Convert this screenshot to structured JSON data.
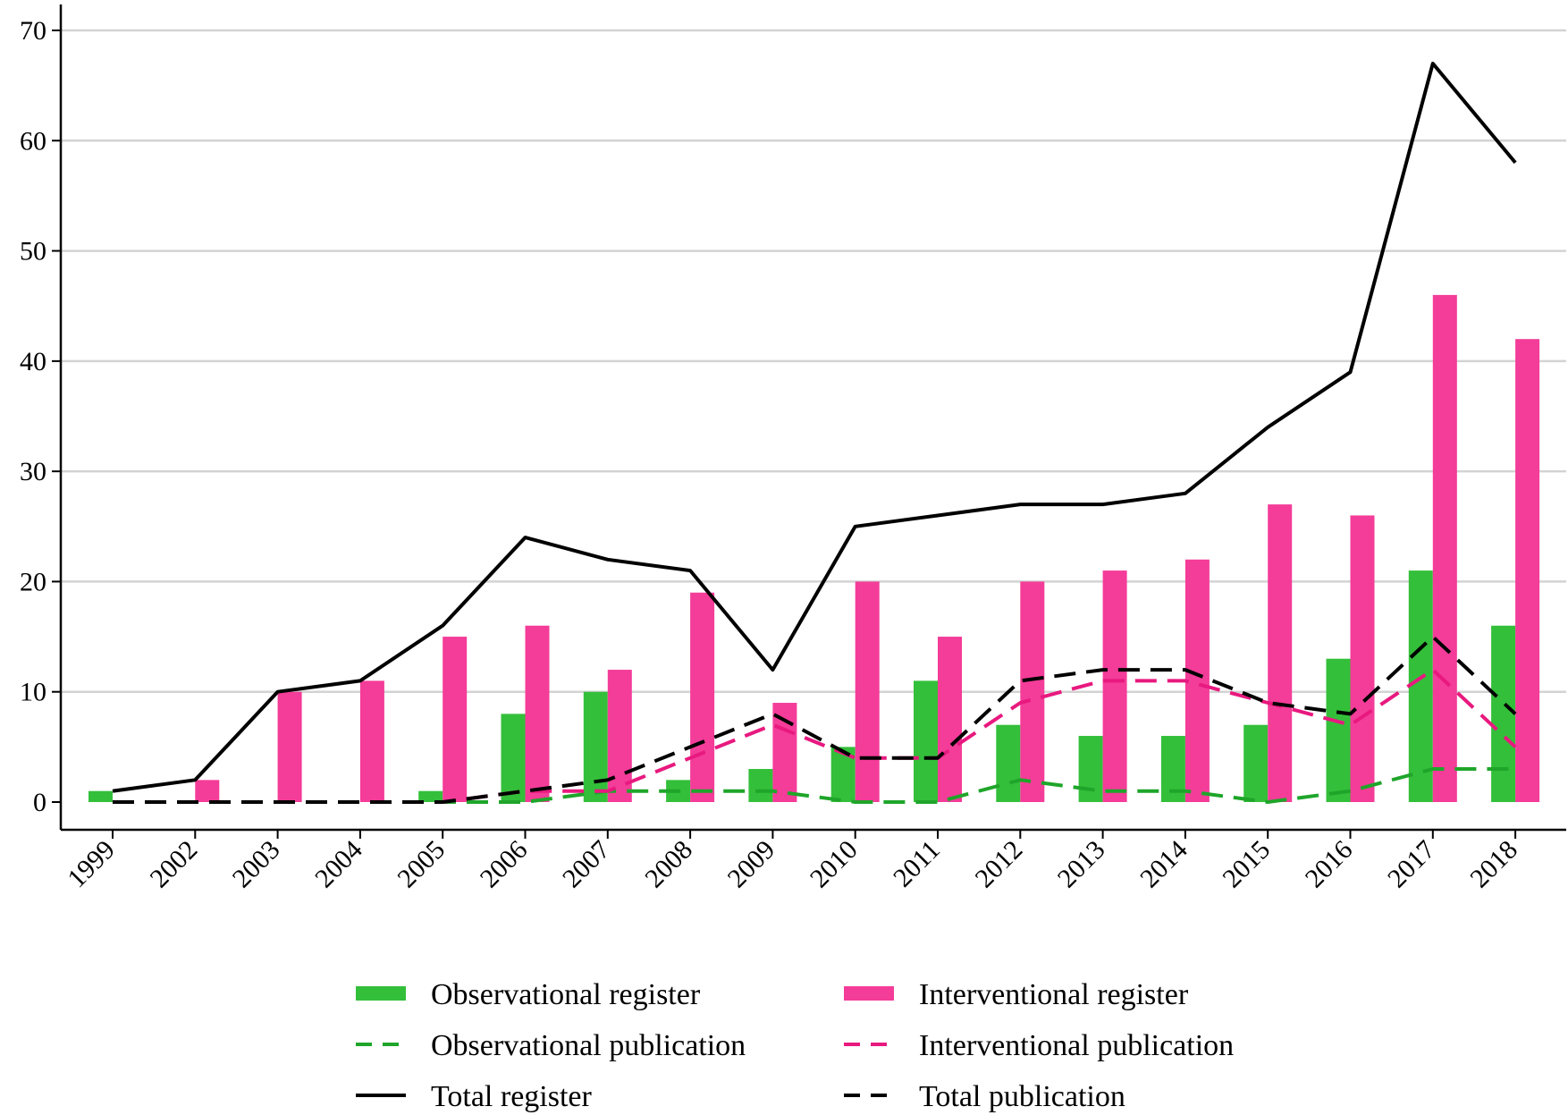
{
  "chart_data": {
    "type": "bar",
    "title": "",
    "xlabel": "",
    "ylabel": "",
    "ylim": [
      0,
      70
    ],
    "yticks": [
      0,
      10,
      20,
      30,
      40,
      50,
      60,
      70
    ],
    "grid": true,
    "legend_position": "bottom",
    "categories": [
      "1999",
      "2002",
      "2003",
      "2004",
      "2005",
      "2006",
      "2007",
      "2008",
      "2009",
      "2010",
      "2011",
      "2012",
      "2013",
      "2014",
      "2015",
      "2016",
      "2017",
      "2018"
    ],
    "bar_series": [
      {
        "name": "Observational register",
        "color": "#33bf3a",
        "values": [
          1,
          0,
          0,
          0,
          1,
          8,
          10,
          2,
          3,
          5,
          11,
          7,
          6,
          6,
          7,
          13,
          21,
          16
        ]
      },
      {
        "name": "Interventional register",
        "color": "#f43c99",
        "values": [
          0,
          2,
          10,
          11,
          15,
          16,
          12,
          19,
          9,
          20,
          15,
          20,
          21,
          22,
          27,
          26,
          46,
          42
        ]
      }
    ],
    "line_series": [
      {
        "name": "Observational publication",
        "color": "#1fa52a",
        "dash": "dashed",
        "values": [
          0,
          0,
          0,
          0,
          0,
          0,
          1,
          1,
          1,
          0,
          0,
          2,
          1,
          1,
          0,
          1,
          3,
          3
        ]
      },
      {
        "name": "Interventional publication",
        "color": "#e8197f",
        "dash": "dashed",
        "values": [
          0,
          0,
          0,
          0,
          0,
          1,
          1,
          4,
          7,
          4,
          4,
          9,
          11,
          11,
          9,
          7,
          12,
          5
        ]
      },
      {
        "name": "Total register",
        "color": "#000000",
        "dash": "solid",
        "values": [
          1,
          2,
          10,
          11,
          16,
          24,
          22,
          21,
          12,
          25,
          26,
          27,
          27,
          28,
          34,
          39,
          67,
          58
        ]
      },
      {
        "name": "Total publication",
        "color": "#000000",
        "dash": "dashed",
        "values": [
          0,
          0,
          0,
          0,
          0,
          1,
          2,
          5,
          8,
          4,
          4,
          11,
          12,
          12,
          9,
          8,
          15,
          8
        ]
      }
    ],
    "legend": [
      {
        "label": "Observational register",
        "kind": "bar",
        "color": "#33bf3a"
      },
      {
        "label": "Interventional register",
        "kind": "bar",
        "color": "#f43c99"
      },
      {
        "label": "Observational publication",
        "kind": "dashed",
        "color": "#1fa52a"
      },
      {
        "label": "Interventional publication",
        "kind": "dashed",
        "color": "#e8197f"
      },
      {
        "label": "Total register",
        "kind": "solid",
        "color": "#000000"
      },
      {
        "label": "Total publication",
        "kind": "dashed",
        "color": "#000000"
      }
    ]
  }
}
